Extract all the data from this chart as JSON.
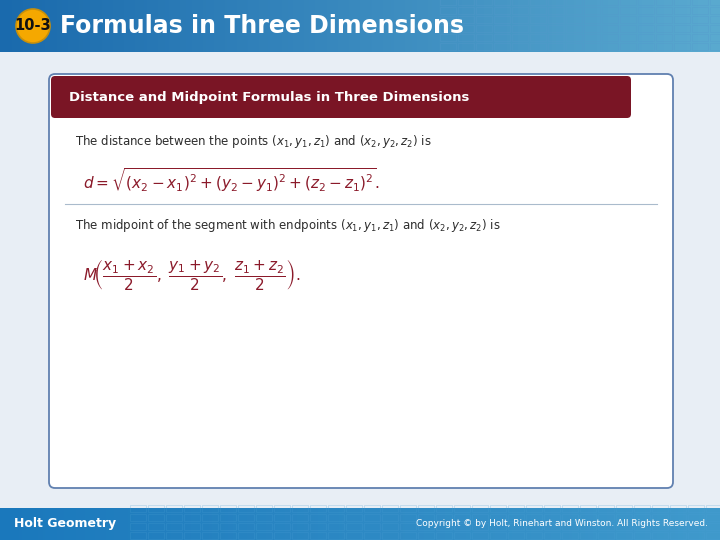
{
  "title_badge_text": "10-3",
  "title_text": "Formulas in Three Dimensions",
  "header_bg_top": "#1a6aad",
  "header_bg_bot": "#3399cc",
  "header_bg_color": "#2878b8",
  "header_grid_color": "#3d8ec4",
  "title_badge_color": "#f5a800",
  "title_font_color": "#ffffff",
  "footer_bg_color": "#1a78bc",
  "footer_left_text": "Holt Geometry",
  "footer_right_text": "Copyright © by Holt, Rinehart and Winston. All Rights Reserved.",
  "body_bg_color": "#e8eef5",
  "box_bg_color": "#ffffff",
  "box_border_color": "#6080b0",
  "box_header_color": "#7a1525",
  "box_header_text": "Distance and Midpoint Formulas in Three Dimensions",
  "box_header_font_color": "#ffffff",
  "formula_color": "#8b1a2a",
  "text_color": "#2c2c2c",
  "italic_coord_color": "#8b1a2a"
}
